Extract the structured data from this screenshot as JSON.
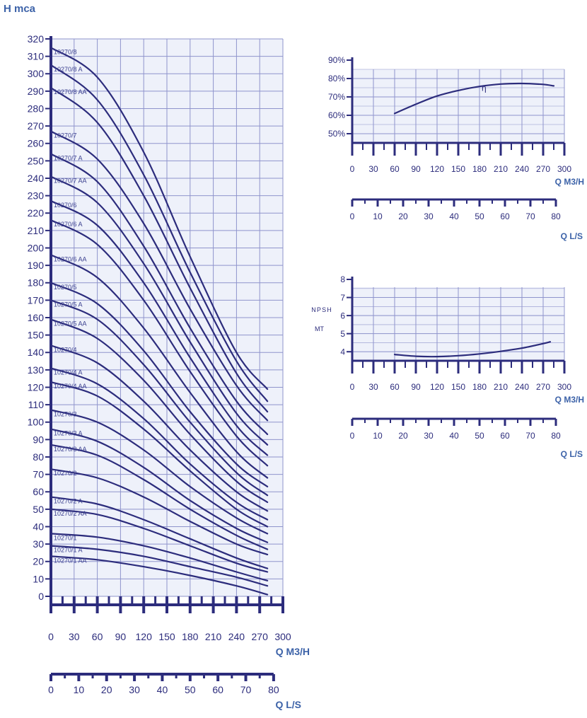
{
  "colors": {
    "navy": "#2c2c7c",
    "grid": "#8f94cc",
    "plot_bg": "#eef1fa",
    "unit_blue": "#3c62a8"
  },
  "chart_data": [
    {
      "id": "head",
      "type": "line",
      "ylabel": "H mca",
      "xlabel": "Q  M3/H",
      "xlabel2": "Q L/S",
      "xlim": [
        0,
        300
      ],
      "ylim": [
        0,
        320
      ],
      "x_ticks": [
        0,
        30,
        60,
        90,
        120,
        150,
        180,
        210,
        240,
        270,
        300
      ],
      "y_ticks": [
        0,
        10,
        20,
        30,
        40,
        50,
        60,
        70,
        80,
        90,
        100,
        110,
        120,
        130,
        140,
        150,
        160,
        170,
        180,
        190,
        200,
        210,
        220,
        230,
        240,
        250,
        260,
        270,
        280,
        290,
        300,
        310,
        320
      ],
      "x2_ticks": [
        0,
        10,
        20,
        30,
        40,
        50,
        60,
        70,
        80
      ],
      "x2_max": 83.33,
      "grid": true,
      "series": [
        {
          "name": "10270/8",
          "x": [
            0,
            60,
            120,
            180,
            240,
            280
          ],
          "y": [
            315,
            298,
            255,
            195,
            140,
            119
          ]
        },
        {
          "name": "10270/8 A",
          "x": [
            0,
            60,
            120,
            180,
            240,
            280
          ],
          "y": [
            305,
            285,
            242,
            186,
            135,
            112
          ]
        },
        {
          "name": "10270/8 AA",
          "x": [
            0,
            60,
            120,
            180,
            240,
            280
          ],
          "y": [
            292,
            272,
            230,
            177,
            128,
            106
          ]
        },
        {
          "name": "10270/7",
          "x": [
            0,
            60,
            120,
            180,
            240,
            280
          ],
          "y": [
            267,
            251,
            214,
            165,
            121,
            101
          ]
        },
        {
          "name": "10270/7 A",
          "x": [
            0,
            60,
            120,
            180,
            240,
            280
          ],
          "y": [
            254,
            238,
            201,
            154,
            112,
            93
          ]
        },
        {
          "name": "10270/7 AA",
          "x": [
            0,
            60,
            120,
            180,
            240,
            280
          ],
          "y": [
            241,
            226,
            191,
            146,
            105,
            87
          ]
        },
        {
          "name": "10270/6",
          "x": [
            0,
            60,
            120,
            180,
            240,
            280
          ],
          "y": [
            227,
            213,
            180,
            137,
            98,
            81
          ]
        },
        {
          "name": "10270/6 A",
          "x": [
            0,
            60,
            120,
            180,
            240,
            280
          ],
          "y": [
            216,
            202,
            170,
            129,
            92,
            75
          ]
        },
        {
          "name": "10270/6 AA",
          "x": [
            0,
            60,
            120,
            180,
            240,
            280
          ],
          "y": [
            196,
            183,
            154,
            117,
            83,
            68
          ]
        },
        {
          "name": "10270/5",
          "x": [
            0,
            60,
            120,
            180,
            240,
            280
          ],
          "y": [
            180,
            168,
            141,
            106,
            76,
            63
          ]
        },
        {
          "name": "10270/5 A",
          "x": [
            0,
            60,
            120,
            180,
            240,
            280
          ],
          "y": [
            170,
            159,
            133,
            100,
            71,
            58
          ]
        },
        {
          "name": "10270/5 AA",
          "x": [
            0,
            60,
            120,
            180,
            240,
            280
          ],
          "y": [
            159,
            148,
            124,
            93,
            66,
            54
          ]
        },
        {
          "name": "10270/4",
          "x": [
            0,
            60,
            120,
            180,
            240,
            280
          ],
          "y": [
            144,
            134,
            112,
            84,
            60,
            49
          ]
        },
        {
          "name": "10270/4 A",
          "x": [
            0,
            60,
            120,
            180,
            240,
            280
          ],
          "y": [
            131,
            122,
            102,
            76,
            54,
            44
          ]
        },
        {
          "name": "10270/4 AA",
          "x": [
            0,
            60,
            120,
            180,
            240,
            280
          ],
          "y": [
            123,
            115,
            96,
            72,
            50,
            40
          ]
        },
        {
          "name": "10270/3",
          "x": [
            0,
            60,
            120,
            180,
            240,
            280
          ],
          "y": [
            107,
            100,
            84,
            63,
            45,
            36
          ]
        },
        {
          "name": "10270/3 A",
          "x": [
            0,
            60,
            120,
            180,
            240,
            280
          ],
          "y": [
            96,
            89,
            74,
            55,
            39,
            31
          ]
        },
        {
          "name": "10270/3 AA",
          "x": [
            0,
            60,
            120,
            180,
            240,
            280
          ],
          "y": [
            87,
            81,
            67,
            50,
            35,
            27
          ]
        },
        {
          "name": "10270/2",
          "x": [
            0,
            60,
            120,
            180,
            240,
            280
          ],
          "y": [
            73,
            68,
            57,
            43,
            30,
            24
          ]
        },
        {
          "name": "10270/2 A",
          "x": [
            0,
            60,
            120,
            180,
            240,
            280
          ],
          "y": [
            57,
            53,
            44,
            33,
            22,
            16
          ]
        },
        {
          "name": "10270/2 AA",
          "x": [
            0,
            60,
            120,
            180,
            240,
            280
          ],
          "y": [
            50,
            47,
            39,
            29,
            19,
            14
          ]
        },
        {
          "name": "10270/1",
          "x": [
            0,
            60,
            120,
            180,
            240,
            280
          ],
          "y": [
            36,
            34,
            29,
            22,
            14,
            9
          ]
        },
        {
          "name": "10270/1 A",
          "x": [
            0,
            60,
            120,
            180,
            240,
            280
          ],
          "y": [
            29,
            27,
            23,
            17,
            11,
            6
          ]
        },
        {
          "name": "10270/1 AA",
          "x": [
            0,
            60,
            120,
            180,
            240,
            280
          ],
          "y": [
            23,
            21,
            17,
            12,
            6,
            1
          ]
        }
      ]
    },
    {
      "id": "efficiency",
      "type": "line",
      "xlabel": "Q  M3/H",
      "xlabel2": "Q L/S",
      "xlim": [
        0,
        300
      ],
      "ylim": [
        45,
        90
      ],
      "x_ticks": [
        0,
        30,
        60,
        90,
        120,
        150,
        180,
        210,
        240,
        270,
        300
      ],
      "y_ticks": [
        50,
        60,
        70,
        80,
        90
      ],
      "y_tick_labels": [
        "50%",
        "60%",
        "70%",
        "80%",
        "90%"
      ],
      "x2_ticks": [
        0,
        10,
        20,
        30,
        40,
        50,
        60,
        70,
        80
      ],
      "x2_max": 83.33,
      "grid": true,
      "series": [
        {
          "name": "η",
          "x": [
            60,
            90,
            120,
            150,
            180,
            210,
            240,
            270,
            285
          ],
          "y": [
            61,
            66,
            70.5,
            73.5,
            75.7,
            77,
            77.3,
            76.8,
            76
          ]
        }
      ]
    },
    {
      "id": "npsh",
      "type": "line",
      "ylabel": "NPSH",
      "ylabel2": "MT",
      "xlabel": "Q  M3/H",
      "xlabel2": "Q L/S",
      "xlim": [
        0,
        300
      ],
      "ylim": [
        3.5,
        8
      ],
      "x_ticks": [
        0,
        30,
        60,
        90,
        120,
        150,
        180,
        210,
        240,
        270,
        300
      ],
      "y_ticks": [
        4,
        5,
        6,
        7,
        8
      ],
      "x2_ticks": [
        0,
        10,
        20,
        30,
        40,
        50,
        60,
        70,
        80
      ],
      "x2_max": 83.33,
      "grid": true,
      "series": [
        {
          "x": [
            60,
            90,
            120,
            150,
            180,
            210,
            240,
            270,
            280
          ],
          "y": [
            3.85,
            3.75,
            3.73,
            3.78,
            3.88,
            4.02,
            4.2,
            4.45,
            4.55
          ]
        }
      ]
    }
  ]
}
